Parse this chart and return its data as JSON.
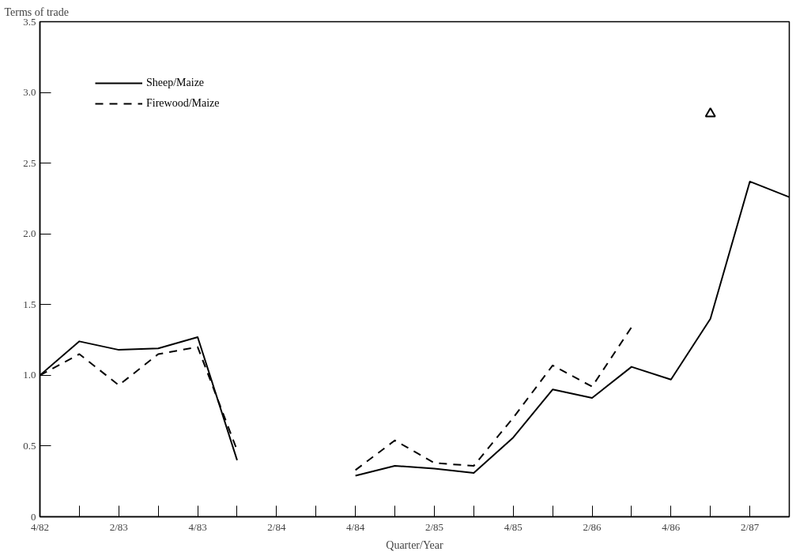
{
  "chart_data": {
    "type": "line",
    "ylabel": "Terms of trade",
    "xlabel": "Quarter/Year",
    "categories": [
      "4/82",
      null,
      "2/83",
      null,
      "4/83",
      null,
      "2/84",
      null,
      "4/84",
      null,
      "2/85",
      null,
      "4/85",
      null,
      "2/86",
      null,
      "4/86",
      null,
      "2/87",
      null
    ],
    "ylim": [
      0,
      3.5
    ],
    "yticks": [
      0,
      {
        "value": 0.5,
        "label": "0.5"
      },
      {
        "value": 1,
        "label": "1.0"
      },
      {
        "value": 1.5,
        "label": "1.5"
      },
      {
        "value": 2,
        "label": "2.0"
      },
      {
        "value": 2.5,
        "label": "2.5"
      },
      {
        "value": 3,
        "label": "3.0"
      },
      {
        "value": 3.5,
        "label": "3.5"
      }
    ],
    "grid": false,
    "legend": "top left",
    "marker": "none",
    "series": [
      {
        "name": "Sheep/Maize",
        "color": "#000000",
        "line_style": "solid",
        "values": [
          1.0,
          1.24,
          1.18,
          1.19,
          1.27,
          0.4,
          null,
          null,
          0.29,
          0.36,
          0.34,
          0.31,
          0.56,
          0.9,
          0.84,
          1.06,
          0.97,
          1.4,
          2.37,
          2.26
        ]
      },
      {
        "name": "Firewood/Maize",
        "color": "#000000",
        "line_style": "dashed",
        "values": [
          1.0,
          1.15,
          0.93,
          1.15,
          1.2,
          0.47,
          null,
          null,
          0.33,
          0.54,
          0.38,
          0.36,
          0.7,
          1.07,
          0.92,
          1.34,
          null,
          2.85,
          null,
          null
        ]
      }
    ]
  }
}
